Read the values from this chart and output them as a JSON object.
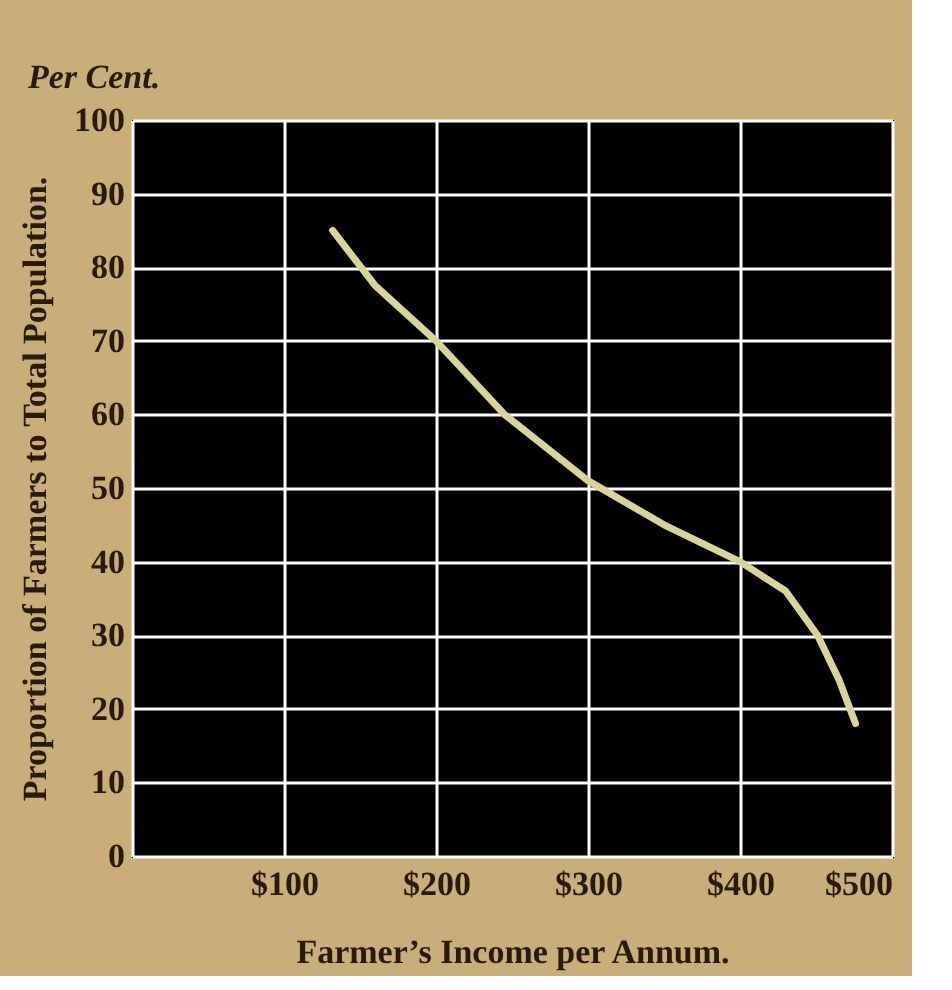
{
  "chart_data": {
    "type": "line",
    "xlabel": "Farmer’s Income per Annum.",
    "ylabel": "Proportion of Farmers to Total Population.",
    "annotations": [
      "Per Cent."
    ],
    "x": [
      132,
      160,
      200,
      245,
      300,
      350,
      400,
      430,
      451,
      465,
      476
    ],
    "series": [
      {
        "color": "#d8d49a",
        "values": [
          85,
          77.5,
          70,
          60,
          51,
          45,
          40,
          36,
          30,
          24,
          18
        ]
      }
    ],
    "xlim": [
      0,
      500
    ],
    "xticks": [
      {
        "value": 0,
        "label": null
      },
      {
        "value": 100,
        "label": "$100"
      },
      {
        "value": 200,
        "label": "$200"
      },
      {
        "value": 300,
        "label": "$300"
      },
      {
        "value": 400,
        "label": "$400"
      },
      {
        "value": 500,
        "label": "$500"
      }
    ],
    "ylim": [
      0,
      100
    ],
    "yticks": [
      0,
      10,
      20,
      30,
      40,
      50,
      60,
      70,
      80,
      90,
      100
    ],
    "grid": true,
    "marker": "none",
    "line_style": "solid"
  }
}
